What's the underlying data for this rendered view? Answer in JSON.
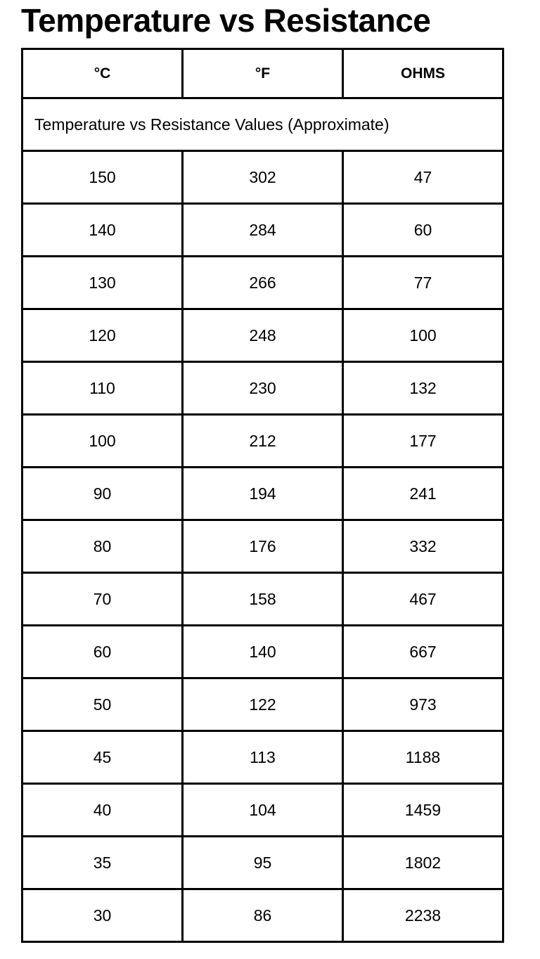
{
  "title": "Temperature vs Resistance",
  "headers": [
    "°C",
    "°F",
    "OHMS"
  ],
  "subtitle": "Temperature vs Resistance Values (Approximate)",
  "rows": [
    [
      "150",
      "302",
      "47"
    ],
    [
      "140",
      "284",
      "60"
    ],
    [
      "130",
      "266",
      "77"
    ],
    [
      "120",
      "248",
      "100"
    ],
    [
      "110",
      "230",
      "132"
    ],
    [
      "100",
      "212",
      "177"
    ],
    [
      "90",
      "194",
      "241"
    ],
    [
      "80",
      "176",
      "332"
    ],
    [
      "70",
      "158",
      "467"
    ],
    [
      "60",
      "140",
      "667"
    ],
    [
      "50",
      "122",
      "973"
    ],
    [
      "45",
      "113",
      "1188"
    ],
    [
      "40",
      "104",
      "1459"
    ],
    [
      "35",
      "95",
      "1802"
    ],
    [
      "30",
      "86",
      "2238"
    ]
  ]
}
